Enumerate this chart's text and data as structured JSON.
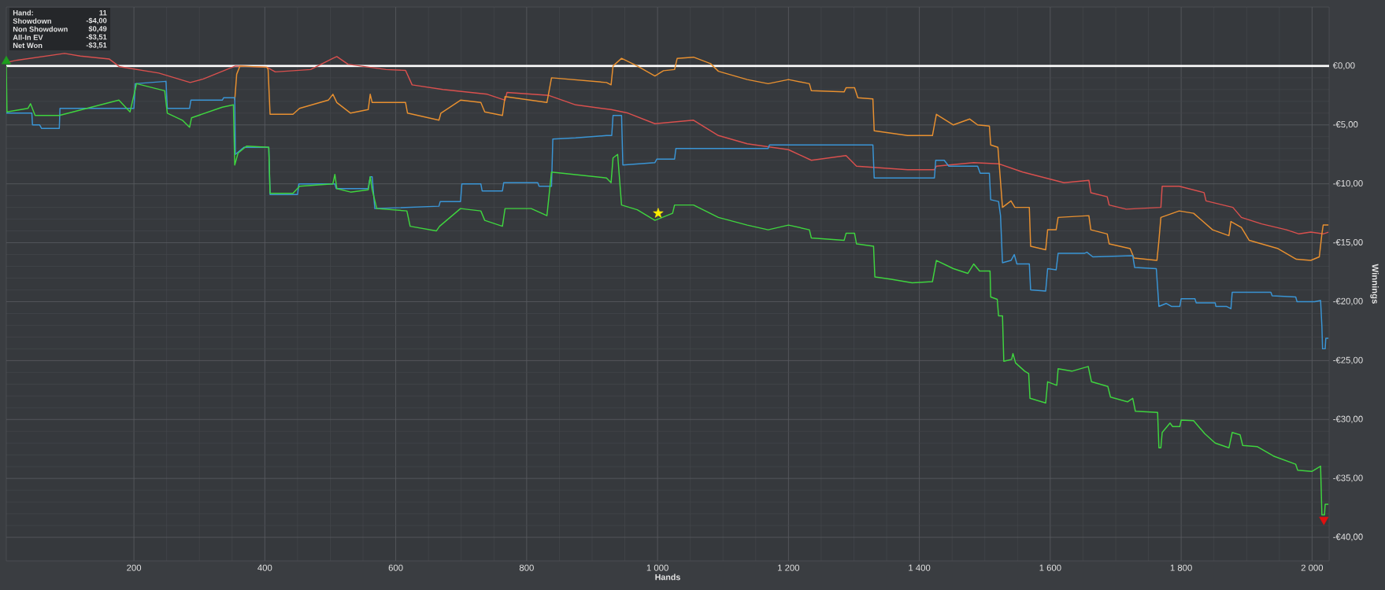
{
  "chart_data": {
    "type": "line",
    "xlabel": "Hands",
    "ylabel": "Winnings",
    "annotations": [
      "Hand:",
      "11",
      "Showdown",
      "-$4,00",
      "Non Showdown",
      "$0,49",
      "All-In EV",
      "-$3,51",
      "Net Won",
      "-$3,51"
    ],
    "xlim": [
      5,
      2026
    ],
    "ylim": [
      -42,
      5
    ],
    "xticks": [
      200,
      400,
      600,
      800,
      {
        "value": 1000,
        "label": "1 000"
      },
      {
        "value": 1200,
        "label": "1 200"
      },
      {
        "value": 1400,
        "label": "1 400"
      },
      {
        "value": 1600,
        "label": "1 600"
      },
      {
        "value": 1800,
        "label": "1 800"
      },
      {
        "value": 2000,
        "label": "2 000"
      }
    ],
    "yticks": [
      {
        "value": 0,
        "label": "€0,00"
      },
      {
        "value": -5,
        "label": "-€5,00"
      },
      {
        "value": -10,
        "label": "-€10,00"
      },
      {
        "value": -15,
        "label": "-€15,00"
      },
      {
        "value": -20,
        "label": "-€20,00"
      },
      {
        "value": -25,
        "label": "-€25,00"
      },
      {
        "value": -30,
        "label": "-€30,00"
      },
      {
        "value": -35,
        "label": "-€35,00"
      },
      {
        "value": -40,
        "label": "-€40,00"
      }
    ],
    "grid": true,
    "ref_lines": [
      {
        "axis": "y",
        "value": 0,
        "color": "#ffffff"
      }
    ],
    "series": [
      {
        "color": "#d9504e",
        "x": [
          5,
          22,
          94,
          118,
          162,
          178,
          238,
          286,
          306,
          355,
          403,
          416,
          470,
          504,
          510,
          527,
          585,
          615,
          625,
          672,
          740,
          767,
          770,
          834,
          875,
          929,
          955,
          996,
          1055,
          1093,
          1137,
          1200,
          1235,
          1288,
          1304,
          1382,
          1423,
          1426,
          1483,
          1521,
          1558,
          1621,
          1659,
          1662,
          1687,
          1690,
          1716,
          1769,
          1771,
          1797,
          1835,
          1838,
          1879,
          1892,
          1923,
          1961,
          1980,
          1998,
          2017,
          2025
        ],
        "values": [
          0.3,
          0.5,
          1.07,
          0.85,
          0.6,
          -0.06,
          -0.6,
          -1.4,
          -1.1,
          0.0,
          -0.1,
          -0.5,
          -0.3,
          0.65,
          0.8,
          0.15,
          -0.3,
          -0.37,
          -1.6,
          -2.0,
          -2.4,
          -2.9,
          -2.25,
          -2.5,
          -3.3,
          -3.7,
          -4.0,
          -4.9,
          -4.6,
          -5.9,
          -6.6,
          -7.1,
          -8.0,
          -7.6,
          -8.5,
          -8.8,
          -8.8,
          -8.5,
          -8.2,
          -8.3,
          -9.0,
          -9.9,
          -9.7,
          -10.75,
          -11.1,
          -11.8,
          -12.15,
          -12.0,
          -10.2,
          -10.2,
          -10.75,
          -11.45,
          -12.0,
          -12.85,
          -13.4,
          -13.9,
          -14.25,
          -14.1,
          -14.25,
          -14.1
        ]
      },
      {
        "color": "#e89030",
        "x": [
          354,
          357,
          362,
          403,
          405,
          408,
          443,
          453,
          497,
          504,
          510,
          531,
          558,
          561,
          564,
          615,
          618,
          666,
          669,
          699,
          730,
          736,
          763,
          767,
          831,
          838,
          922,
          929,
          932,
          945,
          969,
          996,
          1009,
          1026,
          1030,
          1055,
          1081,
          1093,
          1137,
          1169,
          1200,
          1232,
          1235,
          1285,
          1288,
          1301,
          1306,
          1329,
          1331,
          1382,
          1420,
          1426,
          1452,
          1477,
          1489,
          1507,
          1509,
          1520,
          1527,
          1540,
          1546,
          1568,
          1570,
          1593,
          1596,
          1609,
          1612,
          1659,
          1662,
          1687,
          1690,
          1722,
          1728,
          1763,
          1766,
          1769,
          1797,
          1819,
          1848,
          1873,
          1876,
          1892,
          1904,
          1948,
          1976,
          1998,
          2011,
          2015,
          2017,
          2025
        ],
        "values": [
          -2.9,
          -0.7,
          0.0,
          -0.1,
          -0.3,
          -4.1,
          -4.1,
          -3.6,
          -2.9,
          -2.4,
          -3.1,
          -4.0,
          -3.7,
          -2.4,
          -3.1,
          -3.1,
          -4.0,
          -4.6,
          -4.0,
          -2.9,
          -3.1,
          -3.9,
          -4.2,
          -2.6,
          -3.1,
          -1.0,
          -1.4,
          -1.6,
          0.0,
          0.65,
          0.0,
          -0.85,
          -0.4,
          -0.3,
          0.65,
          0.75,
          0.2,
          -0.45,
          -1.15,
          -1.5,
          -1.15,
          -1.5,
          -2.1,
          -2.2,
          -1.85,
          -1.85,
          -2.7,
          -2.8,
          -5.5,
          -5.9,
          -5.9,
          -4.1,
          -5.0,
          -4.5,
          -5.0,
          -5.1,
          -6.7,
          -6.9,
          -12.0,
          -11.45,
          -12.0,
          -12.0,
          -15.3,
          -15.6,
          -13.9,
          -13.9,
          -12.85,
          -12.7,
          -13.9,
          -14.25,
          -15.1,
          -15.5,
          -16.3,
          -16.5,
          -14.8,
          -12.85,
          -12.3,
          -12.5,
          -13.9,
          -14.4,
          -13.2,
          -13.7,
          -14.8,
          -15.5,
          -16.4,
          -16.5,
          -16.2,
          -14.25,
          -13.5,
          -13.5
        ]
      },
      {
        "color": "#3a95d5",
        "x": [
          5,
          44,
          45,
          56,
          59,
          86,
          87,
          200,
          202,
          249,
          251,
          285,
          287,
          335,
          337,
          354,
          355,
          368,
          406,
          408,
          450,
          452,
          507,
          509,
          558,
          561,
          564,
          568,
          666,
          668,
          699,
          701,
          730,
          732,
          763,
          765,
          817,
          819,
          838,
          840,
          875,
          922,
          930,
          932,
          945,
          947,
          996,
          999,
          1026,
          1028,
          1169,
          1171,
          1329,
          1331,
          1423,
          1425,
          1438,
          1445,
          1489,
          1493,
          1507,
          1509,
          1521,
          1524,
          1527,
          1540,
          1545,
          1549,
          1568,
          1570,
          1593,
          1596,
          1609,
          1612,
          1652,
          1656,
          1665,
          1726,
          1729,
          1762,
          1766,
          1777,
          1785,
          1798,
          1800,
          1821,
          1823,
          1852,
          1853,
          1869,
          1876,
          1878,
          1937,
          1939,
          1975,
          1977,
          2004,
          2013,
          2015,
          2016,
          2020,
          2021,
          2025
        ],
        "values": [
          -4.0,
          -4.0,
          -5.0,
          -5.0,
          -5.3,
          -5.3,
          -3.6,
          -3.6,
          -1.5,
          -1.3,
          -3.6,
          -3.6,
          -2.9,
          -2.9,
          -2.7,
          -2.7,
          -7.5,
          -6.9,
          -6.9,
          -10.9,
          -10.9,
          -10.0,
          -10.0,
          -10.4,
          -10.4,
          -9.4,
          -9.4,
          -12.1,
          -11.9,
          -11.5,
          -11.5,
          -10.0,
          -10.0,
          -10.6,
          -10.6,
          -9.9,
          -9.9,
          -10.2,
          -10.2,
          -6.2,
          -6.1,
          -5.9,
          -5.9,
          -4.2,
          -4.2,
          -8.4,
          -8.2,
          -7.9,
          -7.9,
          -7.0,
          -7.0,
          -6.7,
          -6.7,
          -9.5,
          -9.5,
          -8.0,
          -8.0,
          -8.5,
          -8.5,
          -9.1,
          -9.1,
          -11.35,
          -11.5,
          -12.7,
          -16.7,
          -16.5,
          -16.0,
          -16.8,
          -16.8,
          -19.0,
          -19.1,
          -17.2,
          -17.3,
          -15.9,
          -15.9,
          -15.8,
          -16.2,
          -16.1,
          -17.1,
          -17.2,
          -20.4,
          -20.15,
          -20.4,
          -20.4,
          -19.75,
          -19.75,
          -20.1,
          -20.1,
          -20.4,
          -20.4,
          -20.6,
          -19.2,
          -19.2,
          -19.5,
          -19.6,
          -20.0,
          -20.0,
          -19.9,
          -22.1,
          -24.0,
          -24.0,
          -23.1,
          -23.1
        ]
      },
      {
        "color": "#3fd43f",
        "x": [
          5,
          6,
          38,
          42,
          49,
          86,
          177,
          194,
          204,
          247,
          251,
          274,
          285,
          288,
          335,
          352,
          354,
          359,
          372,
          406,
          408,
          443,
          453,
          504,
          507,
          510,
          531,
          558,
          561,
          564,
          571,
          617,
          622,
          662,
          667,
          699,
          730,
          736,
          763,
          767,
          807,
          831,
          838,
          922,
          929,
          932,
          939,
          945,
          969,
          996,
          1023,
          1026,
          1055,
          1093,
          1137,
          1169,
          1200,
          1232,
          1235,
          1285,
          1288,
          1301,
          1304,
          1330,
          1332,
          1357,
          1389,
          1420,
          1426,
          1452,
          1474,
          1483,
          1492,
          1508,
          1509,
          1519,
          1521,
          1527,
          1529,
          1541,
          1543,
          1547,
          1561,
          1567,
          1569,
          1593,
          1596,
          1610,
          1612,
          1633,
          1658,
          1663,
          1688,
          1692,
          1718,
          1726,
          1730,
          1764,
          1766,
          1769,
          1771,
          1783,
          1787,
          1798,
          1800,
          1819,
          1836,
          1852,
          1873,
          1878,
          1890,
          1894,
          1916,
          1941,
          1975,
          1978,
          2000,
          2013,
          2015,
          2019,
          2020,
          2025
        ],
        "values": [
          0.0,
          -3.9,
          -3.6,
          -3.2,
          -4.2,
          -4.2,
          -2.9,
          -3.9,
          -1.5,
          -2.1,
          -4.0,
          -4.6,
          -5.2,
          -4.4,
          -3.5,
          -3.3,
          -8.4,
          -7.4,
          -6.8,
          -6.9,
          -10.8,
          -10.8,
          -10.2,
          -10.0,
          -9.2,
          -10.4,
          -10.7,
          -10.5,
          -9.4,
          -10.5,
          -12.1,
          -12.3,
          -13.6,
          -14.0,
          -13.6,
          -12.1,
          -12.3,
          -13.1,
          -13.6,
          -12.1,
          -12.1,
          -12.7,
          -9.0,
          -9.5,
          -9.9,
          -7.8,
          -7.5,
          -11.8,
          -12.2,
          -13.1,
          -12.5,
          -11.8,
          -11.8,
          -12.85,
          -13.5,
          -13.9,
          -13.5,
          -13.9,
          -14.6,
          -14.8,
          -14.2,
          -14.2,
          -15.1,
          -15.3,
          -17.9,
          -18.1,
          -18.4,
          -18.3,
          -16.5,
          -17.2,
          -17.6,
          -16.8,
          -17.4,
          -17.4,
          -19.6,
          -19.8,
          -21.2,
          -21.2,
          -25.06,
          -24.9,
          -24.4,
          -25.2,
          -25.9,
          -26.1,
          -28.2,
          -28.6,
          -26.8,
          -27.1,
          -25.7,
          -25.9,
          -25.5,
          -26.8,
          -27.2,
          -28.1,
          -28.5,
          -28.2,
          -29.3,
          -29.4,
          -32.4,
          -32.4,
          -31.1,
          -30.3,
          -30.6,
          -30.6,
          -30.05,
          -30.1,
          -31.2,
          -32.0,
          -32.4,
          -31.1,
          -31.3,
          -32.2,
          -32.3,
          -33.1,
          -33.8,
          -34.3,
          -34.4,
          -33.96,
          -38.1,
          -38.1,
          -37.2,
          -37.2
        ]
      },
      {
        "type": "scatter",
        "marker": "star",
        "color": "#ffee00",
        "x": [
          1001
        ],
        "values": [
          -12.5
        ]
      },
      {
        "type": "scatter",
        "marker": "triangle",
        "color": "#1e9e1e",
        "x": [
          5
        ],
        "values": [
          0.4
        ]
      },
      {
        "type": "scatter",
        "marker": "triangle",
        "color": "#e01010",
        "x": [
          2018
        ],
        "values": [
          -38.5
        ]
      }
    ]
  }
}
